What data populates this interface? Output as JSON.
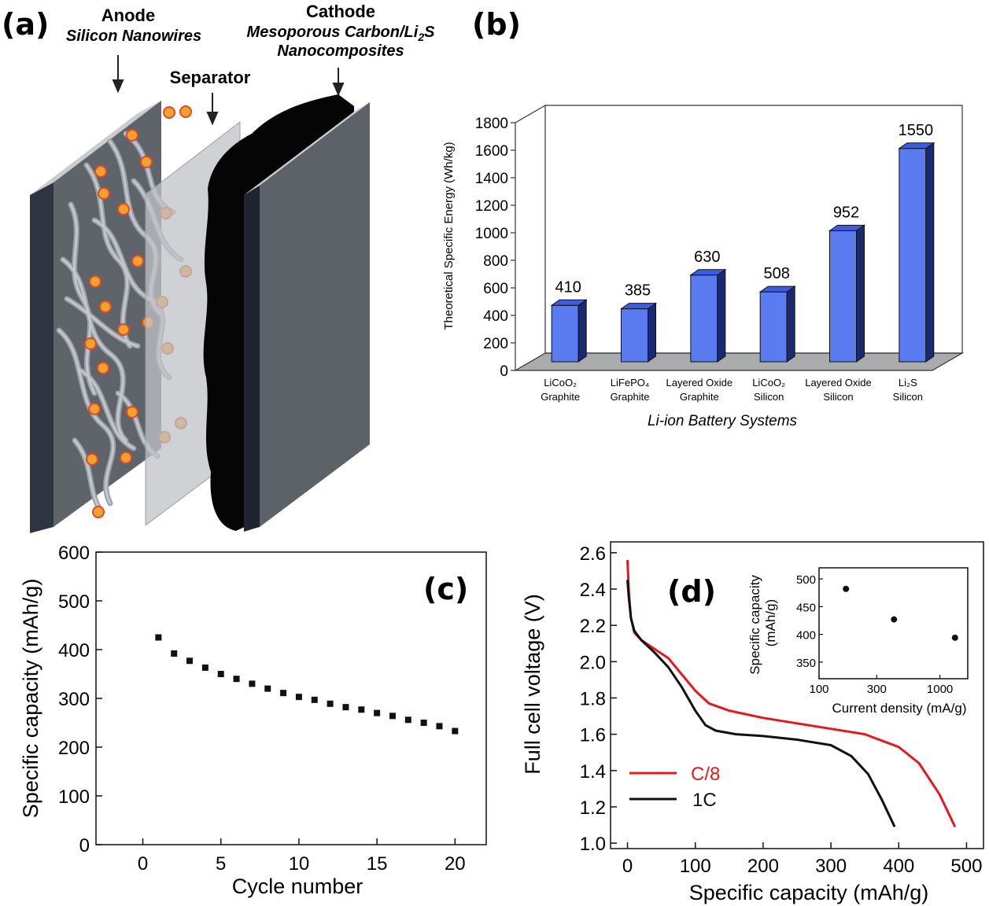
{
  "panel_labels": {
    "a": "(a)",
    "b": "(b)",
    "c": "(c)",
    "d": "(d)"
  },
  "panel_a": {
    "anode_title": "Anode",
    "anode_subtitle": "Silicon Nanowires",
    "cathode_title": "Cathode",
    "cathode_sub1": "Mesoporous Carbon/Li",
    "cathode_sub1_sub": "2",
    "cathode_sub1_end": "S",
    "cathode_sub2": "Nanocomposites",
    "separator": "Separator"
  },
  "chart_data": [
    {
      "id": "b",
      "type": "bar",
      "title": "",
      "xlabel": "Li-ion Battery Systems",
      "ylabel": "Theoretical Specific Energy (Wh/kg)",
      "ylim": [
        0,
        1800
      ],
      "yticks": [
        "0",
        "200",
        "400",
        "600",
        "800",
        "1000",
        "1200",
        "1400",
        "1600",
        "1800"
      ],
      "categories": [
        {
          "line1": "LiCoO₂",
          "line2": "Graphite"
        },
        {
          "line1": "LiFePO₄",
          "line2": "Graphite"
        },
        {
          "line1": "Layered Oxide",
          "line2": "Graphite"
        },
        {
          "line1": "LiCoO₂",
          "line2": "Silicon"
        },
        {
          "line1": "Layered Oxide",
          "line2": "Silicon"
        },
        {
          "line1": "Li₂S",
          "line2": "Silicon"
        }
      ],
      "values": [
        410,
        385,
        630,
        508,
        952,
        1550
      ],
      "labels": [
        "410",
        "385",
        "630",
        "508",
        "952",
        "1550"
      ],
      "bar_color": "#5b7cf0"
    },
    {
      "id": "c",
      "type": "scatter",
      "xlabel": "Cycle number",
      "ylabel": "Specific capacity (mAh/g)",
      "xlim": [
        -3,
        22
      ],
      "ylim": [
        0,
        600
      ],
      "xticks": [
        "0",
        "5",
        "10",
        "15",
        "20"
      ],
      "yticks": [
        "0",
        "100",
        "200",
        "300",
        "400",
        "500",
        "600"
      ],
      "x": [
        1,
        2,
        3,
        4,
        5,
        6,
        7,
        8,
        9,
        10,
        11,
        12,
        13,
        14,
        15,
        16,
        17,
        18,
        19,
        20
      ],
      "y": [
        425,
        392,
        377,
        363,
        350,
        340,
        330,
        320,
        311,
        303,
        297,
        289,
        282,
        277,
        270,
        264,
        256,
        250,
        243,
        233
      ]
    },
    {
      "id": "d",
      "type": "line",
      "xlabel": "Specific capacity (mAh/g)",
      "ylabel": "Full cell voltage (V)",
      "xlim": [
        -25,
        525
      ],
      "ylim": [
        0.97,
        2.66
      ],
      "xticks": [
        "0",
        "100",
        "200",
        "300",
        "400",
        "500"
      ],
      "yticks": [
        "1.0",
        "1.2",
        "1.4",
        "1.6",
        "1.8",
        "2.0",
        "2.2",
        "2.4",
        "2.6"
      ],
      "series": [
        {
          "name": "C/8",
          "color": "#e8171f",
          "points": [
            [
              0,
              2.56
            ],
            [
              2,
              2.38
            ],
            [
              5,
              2.24
            ],
            [
              10,
              2.16
            ],
            [
              20,
              2.12
            ],
            [
              40,
              2.07
            ],
            [
              60,
              2.02
            ],
            [
              80,
              1.93
            ],
            [
              100,
              1.84
            ],
            [
              120,
              1.77
            ],
            [
              150,
              1.73
            ],
            [
              200,
              1.69
            ],
            [
              250,
              1.66
            ],
            [
              300,
              1.63
            ],
            [
              350,
              1.6
            ],
            [
              400,
              1.53
            ],
            [
              430,
              1.44
            ],
            [
              460,
              1.27
            ],
            [
              483,
              1.09
            ]
          ]
        },
        {
          "name": "1C",
          "color": "#111111",
          "points": [
            [
              0,
              2.45
            ],
            [
              2,
              2.35
            ],
            [
              5,
              2.24
            ],
            [
              10,
              2.17
            ],
            [
              20,
              2.12
            ],
            [
              40,
              2.05
            ],
            [
              60,
              1.97
            ],
            [
              80,
              1.86
            ],
            [
              100,
              1.73
            ],
            [
              115,
              1.65
            ],
            [
              130,
              1.62
            ],
            [
              160,
              1.6
            ],
            [
              200,
              1.59
            ],
            [
              250,
              1.57
            ],
            [
              300,
              1.54
            ],
            [
              330,
              1.48
            ],
            [
              355,
              1.38
            ],
            [
              375,
              1.24
            ],
            [
              394,
              1.09
            ]
          ]
        }
      ],
      "inset": {
        "xlabel": "Current density (mA/g)",
        "ylabel": "Specific capacity (mAh/g)",
        "xscale": "log",
        "xlim": [
          100,
          1700
        ],
        "ylim": [
          320,
          520
        ],
        "xticks": [
          {
            "value": 100,
            "label": "100"
          },
          {
            "value": 300,
            "label": "300"
          },
          {
            "value": 1000,
            "label": "1000"
          }
        ],
        "yticks": [
          "350",
          "400",
          "450",
          "500"
        ],
        "x": [
          167,
          417,
          1333
        ],
        "y": [
          482,
          427,
          394
        ]
      }
    }
  ]
}
